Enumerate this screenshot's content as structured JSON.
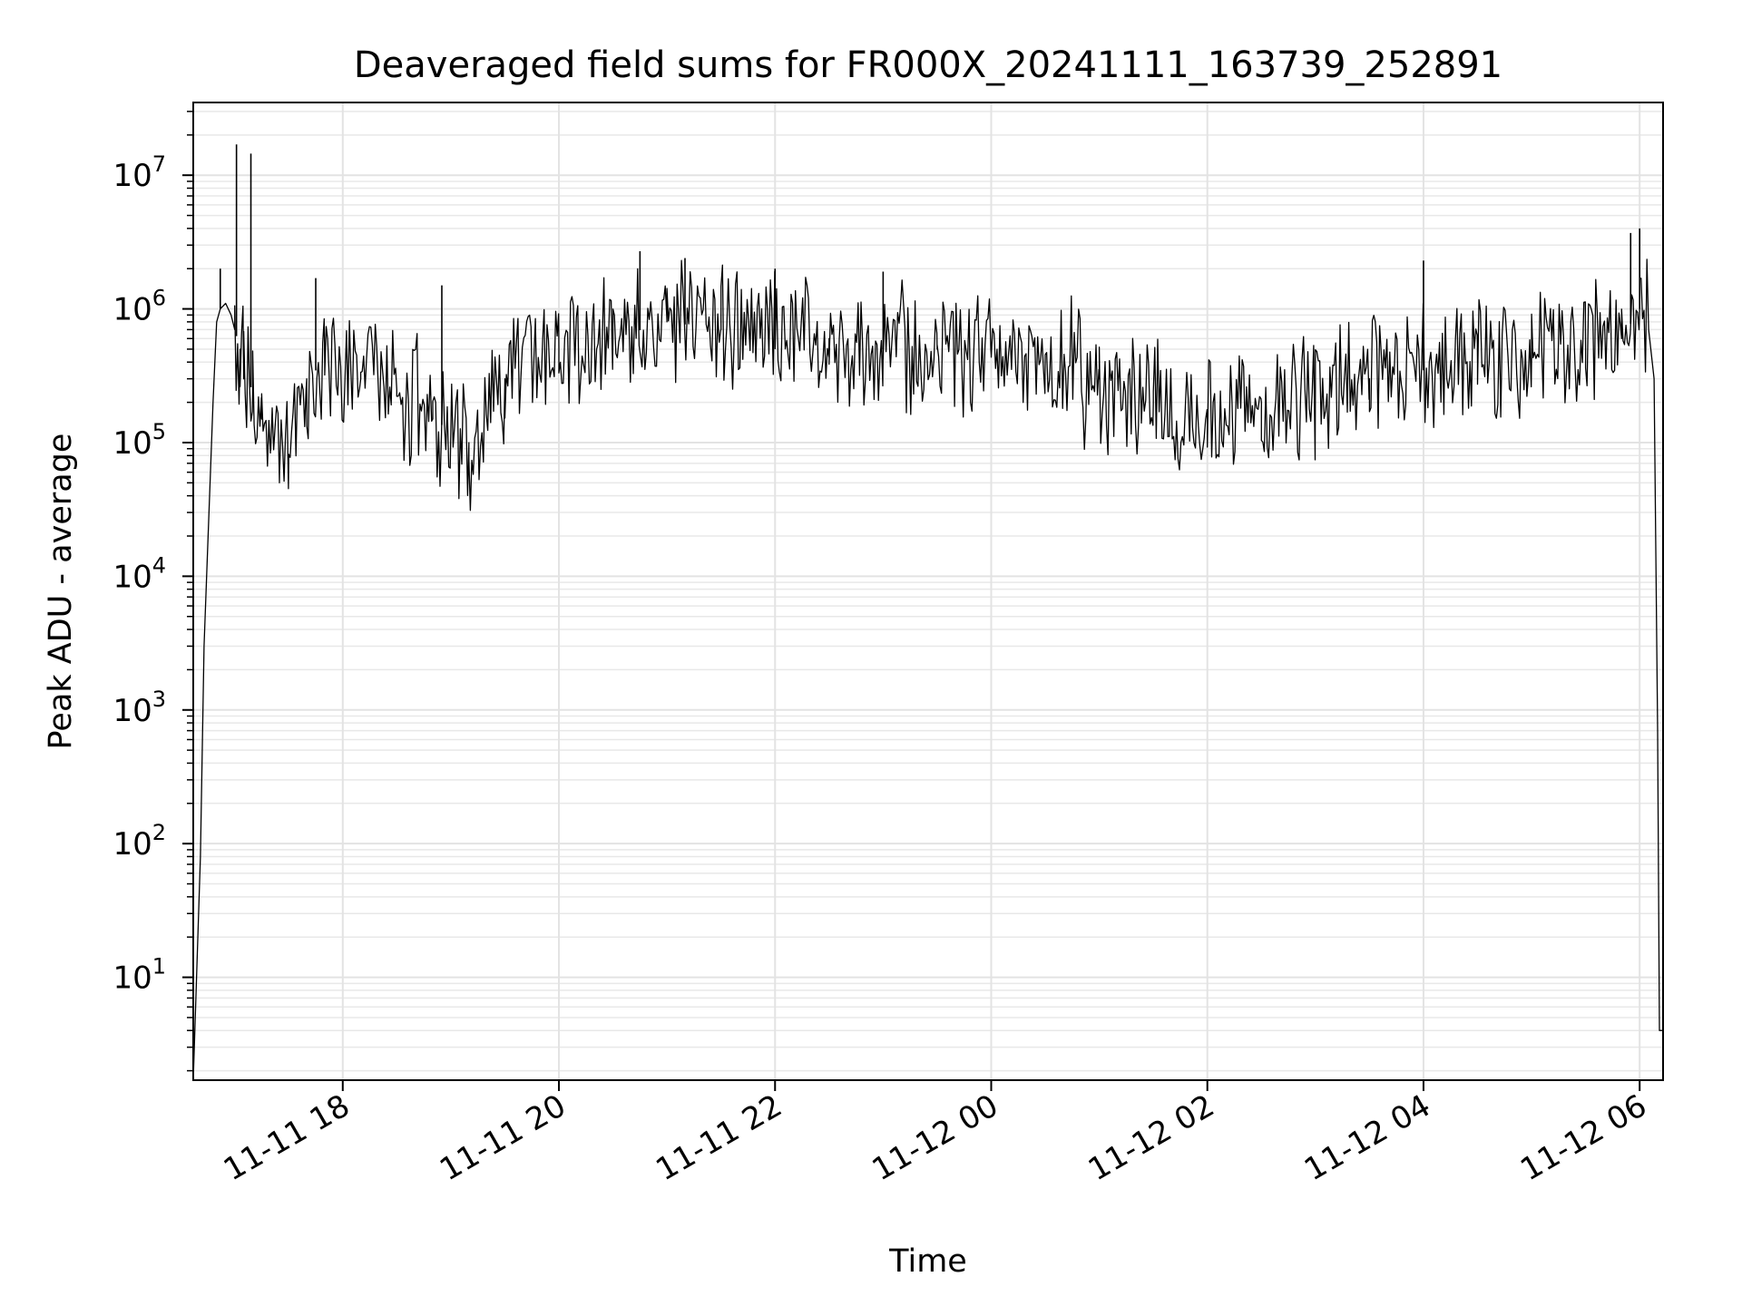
{
  "chart_data": {
    "type": "line",
    "title": "Deaveraged field sums for FR000X_20241111_163739_252891",
    "xlabel": "Time",
    "ylabel": "Peak ADU - average",
    "yscale": "log",
    "ylim": [
      1.7,
      35000000.0
    ],
    "xlim": [
      "2024-11-11 16:37",
      "2024-11-12 06:13"
    ],
    "grid": true,
    "grid_minor": true,
    "line_color": "#000000",
    "x_ticks": [
      "2024-11-11 18:00",
      "2024-11-11 20:00",
      "2024-11-11 22:00",
      "2024-11-12 00:00",
      "2024-11-12 02:00",
      "2024-11-12 04:00",
      "2024-11-12 06:00"
    ],
    "x_tick_labels": [
      "11-11 18",
      "11-11 20",
      "11-11 22",
      "11-12 00",
      "11-12 02",
      "11-12 04",
      "11-12 06"
    ],
    "y_ticks": [
      10,
      100,
      1000,
      10000,
      100000,
      1000000,
      10000000
    ],
    "y_tick_labels": [
      {
        "base": "10",
        "exp": "1"
      },
      {
        "base": "10",
        "exp": "2"
      },
      {
        "base": "10",
        "exp": "3"
      },
      {
        "base": "10",
        "exp": "4"
      },
      {
        "base": "10",
        "exp": "5"
      },
      {
        "base": "10",
        "exp": "6"
      },
      {
        "base": "10",
        "exp": "7"
      }
    ],
    "series": [
      {
        "x": [
          "2024-11-11 16:37",
          "2024-11-11 16:41",
          "2024-11-11 16:43",
          "2024-11-11 16:48",
          "2024-11-11 16:50",
          "2024-11-11 16:52",
          "2024-11-11 16:55",
          "2024-11-11 16:58",
          "2024-11-11 17:00",
          "2024-11-11 17:03",
          "2024-11-11 17:05",
          "2024-11-11 17:10",
          "2024-11-11 17:15",
          "2024-11-11 17:20",
          "2024-11-11 17:25",
          "2024-11-11 17:30",
          "2024-11-11 17:40",
          "2024-11-11 17:50",
          "2024-11-11 18:10",
          "2024-11-11 18:30",
          "2024-11-11 18:50",
          "2024-11-11 19:10",
          "2024-11-11 19:30",
          "2024-11-11 20:00",
          "2024-11-11 20:30",
          "2024-11-11 21:00",
          "2024-11-11 21:30",
          "2024-11-11 22:00",
          "2024-11-11 22:30",
          "2024-11-11 23:00",
          "2024-11-11 23:30",
          "2024-11-12 00:00",
          "2024-11-12 00:30",
          "2024-11-12 01:00",
          "2024-11-12 01:30",
          "2024-11-12 02:00",
          "2024-11-12 02:30",
          "2024-11-12 03:00",
          "2024-11-12 03:30",
          "2024-11-12 04:00",
          "2024-11-12 04:30",
          "2024-11-12 05:00",
          "2024-11-12 05:30",
          "2024-11-12 05:50",
          "2024-11-12 06:00",
          "2024-11-12 06:05",
          "2024-11-12 06:08",
          "2024-11-12 06:10",
          "2024-11-12 06:11",
          "2024-11-12 06:13"
        ],
        "values": [
          1.7,
          80,
          3000,
          200000,
          800000,
          1000000,
          1100000,
          900000,
          700000,
          500000,
          300000,
          250000,
          150000,
          100000,
          80000,
          70000,
          300000,
          400000,
          300000,
          250000,
          150000,
          100000,
          300000,
          500000,
          600000,
          800000,
          700000,
          800000,
          600000,
          500000,
          500000,
          450000,
          400000,
          300000,
          200000,
          150000,
          200000,
          250000,
          300000,
          350000,
          400000,
          450000,
          500000,
          600000,
          1000000,
          700000,
          300000,
          700,
          4,
          4
        ]
      }
    ],
    "spikes": [
      {
        "x": "2024-11-11 16:52",
        "value": 2000000
      },
      {
        "x": "2024-11-11 17:01",
        "value": 17000000
      },
      {
        "x": "2024-11-11 17:09",
        "value": 14500000
      },
      {
        "x": "2024-11-11 17:45",
        "value": 1700000
      },
      {
        "x": "2024-11-11 18:55",
        "value": 1500000
      },
      {
        "x": "2024-11-11 20:45",
        "value": 2700000
      },
      {
        "x": "2024-11-11 21:10",
        "value": 2400000
      },
      {
        "x": "2024-11-11 22:00",
        "value": 2000000
      },
      {
        "x": "2024-11-11 23:00",
        "value": 1900000
      },
      {
        "x": "2024-11-12 04:00",
        "value": 2300000
      },
      {
        "x": "2024-11-12 05:55",
        "value": 3700000
      },
      {
        "x": "2024-11-12 06:00",
        "value": 4000000
      }
    ]
  }
}
